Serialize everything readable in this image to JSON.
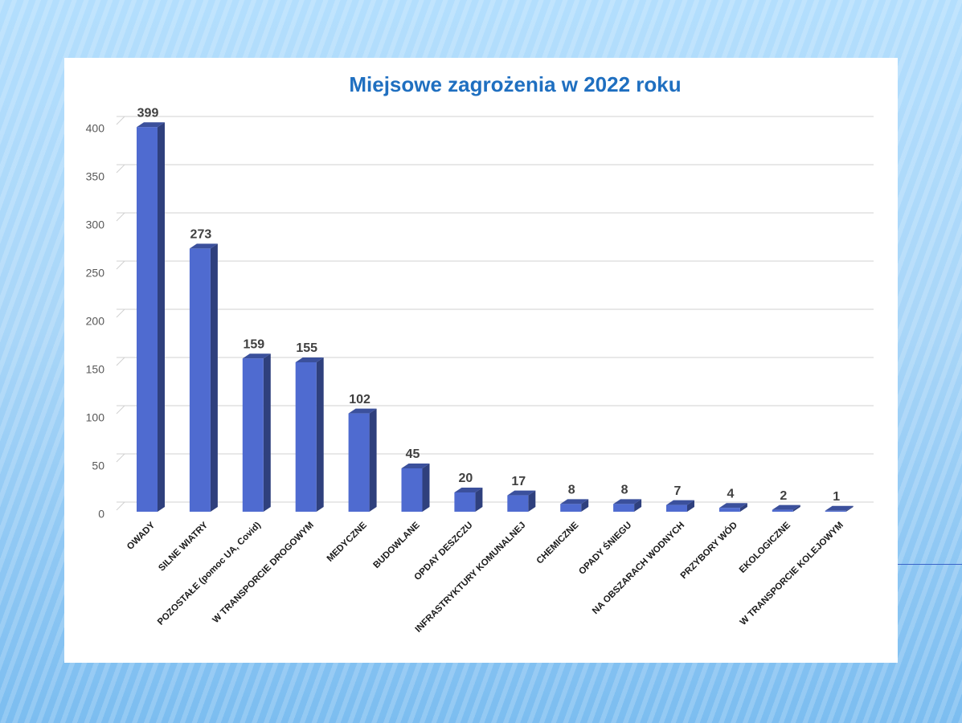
{
  "chart_data": {
    "type": "bar3d",
    "title": "Miejsowe zagrożenia w 2022 roku",
    "categories": [
      "OWADY",
      "SILNE WIATRY",
      "POZOSTAŁE (pomoc UA, Covid)",
      "W TRANSPORCIE DROGOWYM",
      "MEDYCZNE",
      "BUDOWLANE",
      "OPDAY DESZCZU",
      "INFRASTRYKTURY KOMUNALNEJ",
      "CHEMICZNE",
      "OPADY ŚNIEGU",
      "NA OBSZARACH WODNYCH",
      "PRZYBORY WÓD",
      "EKOLOGICZNE",
      "W TRANSPORCIE KOLEJOWYM"
    ],
    "values": [
      399,
      273,
      159,
      155,
      102,
      45,
      20,
      17,
      8,
      8,
      7,
      4,
      2,
      1
    ],
    "color": "#4f6bd0",
    "ylim": [
      0,
      400
    ],
    "yticks": [
      0,
      50,
      100,
      150,
      200,
      250,
      300,
      350,
      400
    ],
    "grid": true
  }
}
